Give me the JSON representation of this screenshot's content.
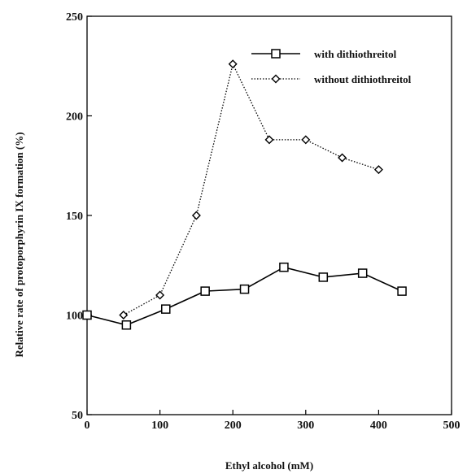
{
  "chart_data": {
    "type": "line",
    "title": "",
    "xlabel": "Ethyl alcohol (mM)",
    "ylabel": "Relative rate of protoporphyrin IX formation (%)",
    "xlim": [
      0,
      500
    ],
    "ylim": [
      50,
      250
    ],
    "x_ticks": [
      0,
      100,
      200,
      300,
      400,
      500
    ],
    "y_ticks": [
      50,
      100,
      150,
      200,
      250
    ],
    "grid": false,
    "legend_position": "top-right",
    "series": [
      {
        "name": "with dithiothreitol",
        "marker": "square",
        "line_style": "solid",
        "color": "#000000",
        "x": [
          0,
          54,
          108,
          162,
          216,
          270,
          324,
          378,
          432
        ],
        "y": [
          100,
          95,
          103,
          112,
          113,
          124,
          119,
          121,
          112
        ]
      },
      {
        "name": "without dithiothreitol",
        "marker": "diamond",
        "line_style": "dotted",
        "color": "#000000",
        "x": [
          50,
          100,
          150,
          200,
          250,
          300,
          350,
          400
        ],
        "y": [
          100,
          110,
          150,
          226,
          188,
          188,
          179,
          173
        ]
      }
    ]
  }
}
